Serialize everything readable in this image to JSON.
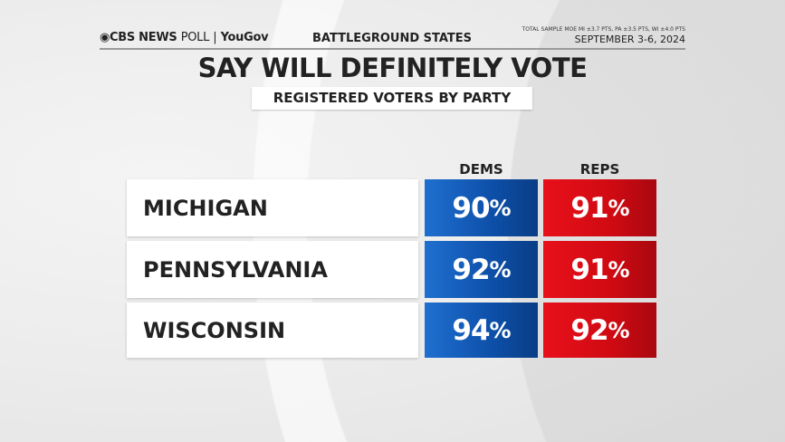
{
  "header": {
    "logo": "CBS NEWS POLL | YouGov",
    "logo_bold": "CBS NEWS",
    "logo_thin": "POLL",
    "logo_partner": "YouGov",
    "section": "BATTLEGROUND STATES",
    "moe": "TOTAL SAMPLE MOE  MI ±3.7 PTS, PA ±3.5 PTS, WI ±4.0 PTS",
    "date": "SEPTEMBER 3-6, 2024"
  },
  "chart_data": {
    "type": "table",
    "title": "SAY WILL DEFINITELY VOTE",
    "subtitle": "REGISTERED VOTERS BY PARTY",
    "columns": [
      "DEMS",
      "REPS"
    ],
    "rows": [
      {
        "label": "MICHIGAN",
        "values": [
          90,
          91
        ]
      },
      {
        "label": "PENNSYLVANIA",
        "values": [
          92,
          91
        ]
      },
      {
        "label": "WISCONSIN",
        "values": [
          94,
          92
        ]
      }
    ],
    "unit": "%",
    "colors": {
      "DEMS": "#0d4fa8",
      "REPS": "#d00a12"
    }
  }
}
